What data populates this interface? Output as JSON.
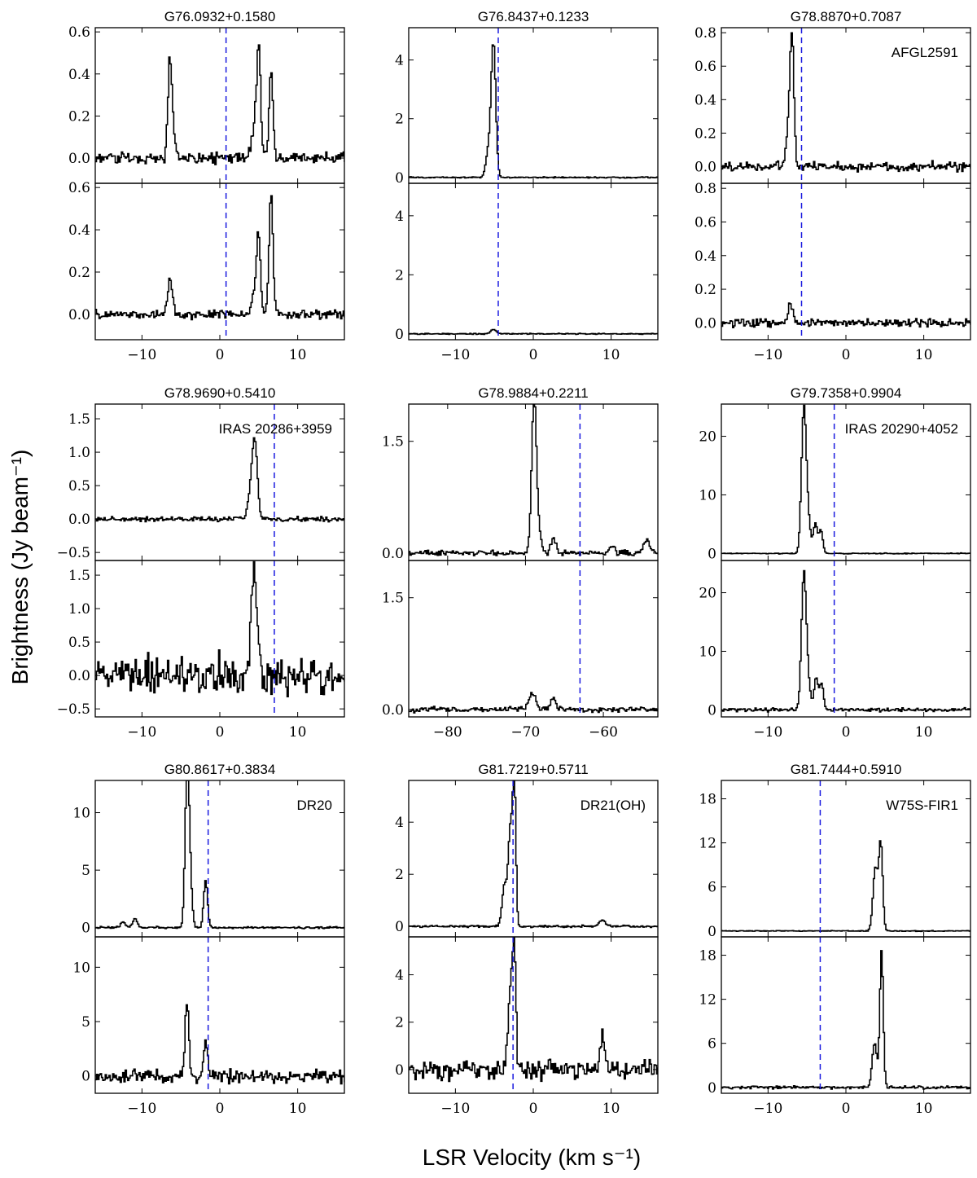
{
  "figure": {
    "ylabel": "Brightness (Jy beam⁻¹)",
    "xlabel": "LSR Velocity (km s⁻¹)"
  },
  "chart_data": [
    {
      "type": "line",
      "title": "G76.0932+0.1580",
      "source_label": "",
      "xlim": [
        -16,
        16
      ],
      "xticks": [
        -10,
        0,
        10
      ],
      "top": {
        "ylim": [
          -0.12,
          0.62
        ],
        "yticks": [
          0.0,
          0.2,
          0.4,
          0.6
        ],
        "ytick_labels": [
          "0.0",
          "0.2",
          "0.4",
          "0.6"
        ],
        "noise": 0.02,
        "peaks": [
          {
            "v": -6.5,
            "amp": 0.45,
            "w": 0.25
          },
          {
            "v": -6.0,
            "amp": 0.1,
            "w": 0.3
          },
          {
            "v": 4.9,
            "amp": 0.52,
            "w": 0.25
          },
          {
            "v": 4.3,
            "amp": 0.12,
            "w": 0.35
          },
          {
            "v": 6.5,
            "amp": 0.41,
            "w": 0.25
          }
        ]
      },
      "bottom": {
        "ylim": [
          -0.12,
          0.62
        ],
        "yticks": [
          0.0,
          0.2,
          0.4,
          0.6
        ],
        "ytick_labels": [
          "0.0",
          "0.2",
          "0.4",
          "0.6"
        ],
        "noise": 0.015,
        "peaks": [
          {
            "v": -6.5,
            "amp": 0.16,
            "w": 0.3
          },
          {
            "v": 4.9,
            "amp": 0.37,
            "w": 0.25
          },
          {
            "v": 4.3,
            "amp": 0.08,
            "w": 0.35
          },
          {
            "v": 6.5,
            "amp": 0.56,
            "w": 0.25
          }
        ]
      },
      "vlsr": 0.8
    },
    {
      "type": "line",
      "title": "G76.8437+0.1233",
      "source_label": "",
      "xlim": [
        -16,
        16
      ],
      "xticks": [
        -10,
        0,
        10
      ],
      "top": {
        "ylim": [
          -0.2,
          5.1
        ],
        "yticks": [
          0,
          2,
          4
        ],
        "ytick_labels": [
          "0",
          "2",
          "4"
        ],
        "noise": 0.015,
        "peaks": [
          {
            "v": -5.2,
            "amp": 4.6,
            "w": 0.3
          },
          {
            "v": -5.9,
            "amp": 0.8,
            "w": 0.3
          }
        ]
      },
      "bottom": {
        "ylim": [
          -0.2,
          5.1
        ],
        "yticks": [
          0,
          2,
          4
        ],
        "ytick_labels": [
          "0",
          "2",
          "4"
        ],
        "noise": 0.012,
        "peaks": [
          {
            "v": -5.2,
            "amp": 0.15,
            "w": 0.35
          }
        ]
      },
      "vlsr": -4.5
    },
    {
      "type": "line",
      "title": "G78.8870+0.7087",
      "source_label": "AFGL2591",
      "xlim": [
        -16,
        16
      ],
      "xticks": [
        -10,
        0,
        10
      ],
      "top": {
        "ylim": [
          -0.1,
          0.83
        ],
        "yticks": [
          0.0,
          0.2,
          0.4,
          0.6,
          0.8
        ],
        "ytick_labels": [
          "0.0",
          "0.2",
          "0.4",
          "0.6",
          "0.8"
        ],
        "noise": 0.02,
        "peaks": [
          {
            "v": -7.0,
            "amp": 0.76,
            "w": 0.25
          },
          {
            "v": -7.5,
            "amp": 0.2,
            "w": 0.3
          }
        ]
      },
      "bottom": {
        "ylim": [
          -0.1,
          0.83
        ],
        "yticks": [
          0.0,
          0.2,
          0.4,
          0.6,
          0.8
        ],
        "ytick_labels": [
          "0.0",
          "0.2",
          "0.4",
          "0.6",
          "0.8"
        ],
        "noise": 0.018,
        "peaks": [
          {
            "v": -7.2,
            "amp": 0.1,
            "w": 0.35
          }
        ]
      },
      "vlsr": -5.7
    },
    {
      "type": "line",
      "title": "G78.9690+0.5410",
      "source_label": "IRAS 20286+3959",
      "xlim": [
        -16,
        16
      ],
      "xticks": [
        -10,
        0,
        10
      ],
      "top": {
        "ylim": [
          -0.62,
          1.72
        ],
        "yticks": [
          -0.5,
          0.0,
          0.5,
          1.0,
          1.5
        ],
        "ytick_labels": [
          "−0.5",
          "0.0",
          "0.5",
          "1.0",
          "1.5"
        ],
        "noise": 0.025,
        "peaks": [
          {
            "v": 4.4,
            "amp": 1.15,
            "w": 0.35
          },
          {
            "v": 3.8,
            "amp": 0.3,
            "w": 0.3
          }
        ]
      },
      "bottom": {
        "ylim": [
          -0.62,
          1.72
        ],
        "yticks": [
          -0.5,
          0.0,
          0.5,
          1.0,
          1.5
        ],
        "ytick_labels": [
          "−0.5",
          "0.0",
          "0.5",
          "1.0",
          "1.5"
        ],
        "noise": 0.2,
        "peaks": [
          {
            "v": 4.4,
            "amp": 1.5,
            "w": 0.4
          }
        ]
      },
      "vlsr": 7.0
    },
    {
      "type": "line",
      "title": "G78.9884+0.2211",
      "source_label": "",
      "xlim": [
        -85,
        -53
      ],
      "xticks": [
        -80,
        -70,
        -60
      ],
      "top": {
        "ylim": [
          -0.1,
          2.0
        ],
        "yticks": [
          0.0,
          1.5
        ],
        "ytick_labels": [
          "0.0",
          "1.5"
        ],
        "noise": 0.025,
        "peaks": [
          {
            "v": -69,
            "amp": 1.85,
            "w": 0.3
          },
          {
            "v": -68.6,
            "amp": 0.4,
            "w": 0.4
          },
          {
            "v": -66.5,
            "amp": 0.2,
            "w": 0.3
          },
          {
            "v": -54.5,
            "amp": 0.17,
            "w": 0.4
          },
          {
            "v": -59,
            "amp": 0.12,
            "w": 0.3
          }
        ]
      },
      "bottom": {
        "ylim": [
          -0.1,
          2.0
        ],
        "yticks": [
          0.0,
          1.5
        ],
        "ytick_labels": [
          "0.0",
          "1.5"
        ],
        "noise": 0.025,
        "peaks": [
          {
            "v": -69.2,
            "amp": 0.22,
            "w": 0.4
          },
          {
            "v": -66.5,
            "amp": 0.15,
            "w": 0.3
          }
        ]
      },
      "vlsr": -63.0
    },
    {
      "type": "line",
      "title": "G79.7358+0.9904",
      "source_label": "IRAS 20290+4052",
      "xlim": [
        -16,
        16
      ],
      "xticks": [
        -10,
        0,
        10
      ],
      "top": {
        "ylim": [
          -1.2,
          25.5
        ],
        "yticks": [
          0,
          10,
          20
        ],
        "ytick_labels": [
          "0",
          "10",
          "20"
        ],
        "noise": 0.05,
        "peaks": [
          {
            "v": -5.5,
            "amp": 23,
            "w": 0.3
          },
          {
            "v": -5.0,
            "amp": 6,
            "w": 0.35
          },
          {
            "v": -4.0,
            "amp": 5,
            "w": 0.25
          },
          {
            "v": -3.3,
            "amp": 4,
            "w": 0.25
          }
        ]
      },
      "bottom": {
        "ylim": [
          -1.2,
          25.5
        ],
        "yticks": [
          0,
          10,
          20
        ],
        "ytick_labels": [
          "0",
          "10",
          "20"
        ],
        "noise": 0.2,
        "peaks": [
          {
            "v": -5.5,
            "amp": 22,
            "w": 0.3
          },
          {
            "v": -5.0,
            "amp": 5,
            "w": 0.35
          },
          {
            "v": -3.9,
            "amp": 5.5,
            "w": 0.25
          },
          {
            "v": -3.2,
            "amp": 4.5,
            "w": 0.25
          }
        ]
      },
      "vlsr": -1.5
    },
    {
      "type": "line",
      "title": "G80.8617+0.3834",
      "source_label": "DR20",
      "xlim": [
        -16,
        16
      ],
      "xticks": [
        -10,
        0,
        10
      ],
      "top": {
        "ylim": [
          -0.8,
          12.8
        ],
        "yticks": [
          0,
          5,
          10
        ],
        "ytick_labels": [
          "0",
          "5",
          "10"
        ],
        "noise": 0.06,
        "peaks": [
          {
            "v": -4.3,
            "amp": 11.7,
            "w": 0.25
          },
          {
            "v": -4.0,
            "amp": 5,
            "w": 0.3
          },
          {
            "v": -1.9,
            "amp": 4.1,
            "w": 0.25
          },
          {
            "v": -12.5,
            "amp": 0.5,
            "w": 0.3
          },
          {
            "v": -11,
            "amp": 0.8,
            "w": 0.3
          }
        ]
      },
      "bottom": {
        "ylim": [
          -1.6,
          12.8
        ],
        "yticks": [
          0,
          5,
          10
        ],
        "ytick_labels": [
          "0",
          "5",
          "10"
        ],
        "noise": 0.45,
        "peaks": [
          {
            "v": -4.3,
            "amp": 6.8,
            "w": 0.25
          },
          {
            "v": -1.9,
            "amp": 2.8,
            "w": 0.25
          }
        ]
      },
      "vlsr": -1.5
    },
    {
      "type": "line",
      "title": "G81.7219+0.5711",
      "source_label": "DR21(OH)",
      "xlim": [
        -16,
        16
      ],
      "xticks": [
        -10,
        0,
        10
      ],
      "top": {
        "ylim": [
          -0.4,
          5.6
        ],
        "yticks": [
          0,
          2,
          4
        ],
        "ytick_labels": [
          "0",
          "2",
          "4"
        ],
        "noise": 0.03,
        "peaks": [
          {
            "v": -3.0,
            "amp": 3.8,
            "w": 0.3
          },
          {
            "v": -2.5,
            "amp": 5.0,
            "w": 0.2
          },
          {
            "v": -3.8,
            "amp": 1.5,
            "w": 0.3
          },
          {
            "v": 8.8,
            "amp": 0.25,
            "w": 0.4
          }
        ]
      },
      "bottom": {
        "ylim": [
          -1.0,
          5.6
        ],
        "yticks": [
          0,
          2,
          4
        ],
        "ytick_labels": [
          "0",
          "2",
          "4"
        ],
        "noise": 0.3,
        "peaks": [
          {
            "v": -3.0,
            "amp": 3.5,
            "w": 0.3
          },
          {
            "v": -2.5,
            "amp": 5.0,
            "w": 0.2
          },
          {
            "v": 8.8,
            "amp": 1.5,
            "w": 0.3
          }
        ]
      },
      "vlsr": -2.6
    },
    {
      "type": "line",
      "title": "G81.7444+0.5910",
      "source_label": "W75S-FIR1",
      "xlim": [
        -16,
        16
      ],
      "xticks": [
        -10,
        0,
        10
      ],
      "top": {
        "ylim": [
          -0.8,
          20.5
        ],
        "yticks": [
          0,
          6,
          12,
          18
        ],
        "ytick_labels": [
          "0",
          "6",
          "12",
          "18"
        ],
        "noise": 0.04,
        "peaks": [
          {
            "v": 3.7,
            "amp": 8.5,
            "w": 0.3
          },
          {
            "v": 4.4,
            "amp": 11.8,
            "w": 0.25
          }
        ]
      },
      "bottom": {
        "ylim": [
          -0.8,
          20.5
        ],
        "yticks": [
          0,
          6,
          12,
          18
        ],
        "ytick_labels": [
          "0",
          "6",
          "12",
          "18"
        ],
        "noise": 0.15,
        "peaks": [
          {
            "v": 3.6,
            "amp": 6.2,
            "w": 0.3
          },
          {
            "v": 4.5,
            "amp": 18.5,
            "w": 0.22
          }
        ]
      },
      "vlsr": -3.3
    }
  ]
}
